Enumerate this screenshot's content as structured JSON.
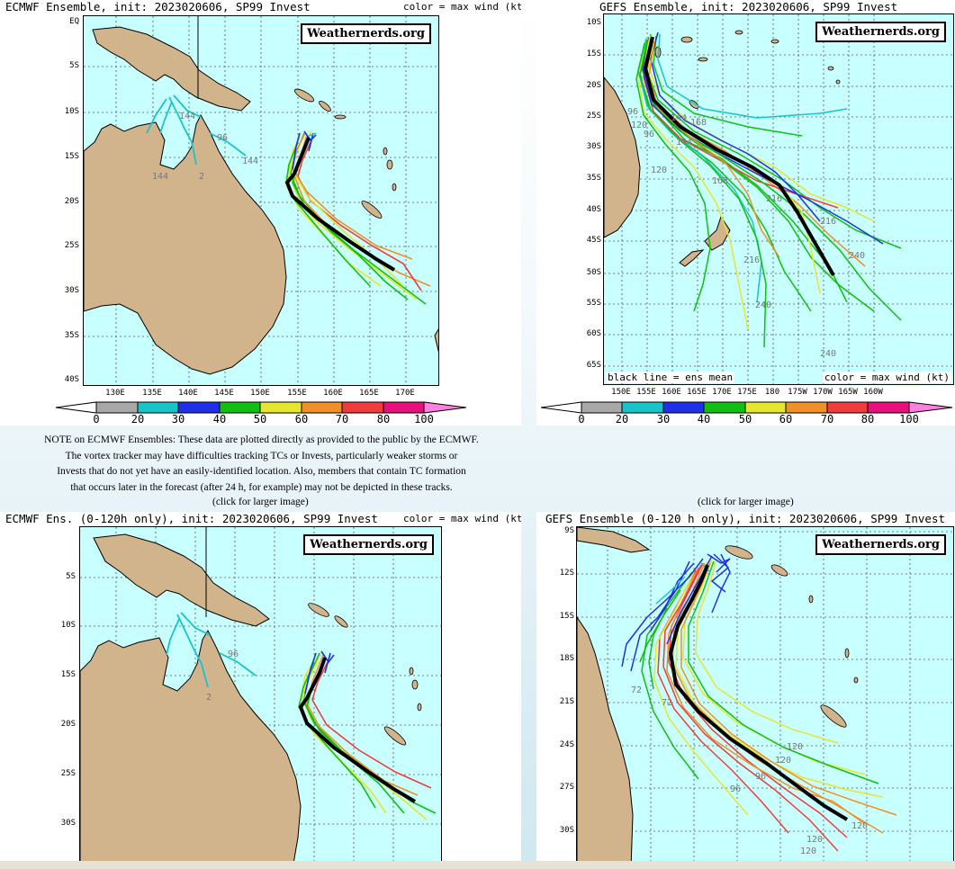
{
  "panels": {
    "ecmwf_full": {
      "title": "ECMWF Ensemble, init: 2023020606, SP99 Invest",
      "color_label": "color = max wind (kt)",
      "logo": "Weathernerds.org",
      "lat_labels": [
        "EQ",
        "5S",
        "10S",
        "15S",
        "20S",
        "25S",
        "30S",
        "35S",
        "40S"
      ],
      "lon_labels": [
        "130E",
        "135E",
        "140E",
        "145E",
        "150E",
        "155E",
        "160E",
        "165E",
        "170E"
      ],
      "time_labels": [
        "144",
        "96",
        "2",
        "144",
        "144"
      ]
    },
    "gefs_full": {
      "title": "GEFS Ensemble, init: 2023020606, SP99 Invest",
      "logo": "Weathernerds.org",
      "bottom_left": "black line = ens mean",
      "bottom_right": "color = max wind (kt)",
      "lat_labels": [
        "10S",
        "15S",
        "20S",
        "25S",
        "30S",
        "35S",
        "40S",
        "45S",
        "50S",
        "55S",
        "60S",
        "65S"
      ],
      "lon_labels": [
        "150E",
        "155E",
        "160E",
        "165E",
        "170E",
        "175E",
        "180",
        "175W",
        "170W",
        "165W",
        "160W"
      ],
      "time_labels": [
        "96",
        "96",
        "120",
        "144",
        "168",
        "144",
        "120",
        "168",
        "216",
        "216",
        "240",
        "240",
        "240",
        "216"
      ]
    },
    "ecmwf_120": {
      "title": "ECMWF Ens. (0-120h only), init: 2023020606, SP99 Invest",
      "color_label": "color = max wind (kt)",
      "logo": "Weathernerds.org",
      "lat_labels": [
        "5S",
        "10S",
        "15S",
        "20S",
        "25S",
        "30S"
      ],
      "time_labels": [
        "96",
        "2"
      ]
    },
    "gefs_120": {
      "title": "GEFS Ensemble (0-120 h only), init: 2023020606, SP99 Invest",
      "logo": "Weathernerds.org",
      "lat_labels": [
        "9S",
        "12S",
        "15S",
        "18S",
        "21S",
        "24S",
        "27S",
        "30S"
      ],
      "time_labels": [
        "72",
        "72",
        "120",
        "120",
        "96",
        "96",
        "120",
        "120",
        "120"
      ]
    }
  },
  "colorbar": {
    "ticks": [
      "0",
      "20",
      "30",
      "40",
      "50",
      "60",
      "70",
      "80",
      "100"
    ],
    "colors": [
      "#a8a8a8",
      "#19c3c9",
      "#2030e6",
      "#10c010",
      "#e6e630",
      "#f09028",
      "#f03c3c",
      "#e8107c"
    ]
  },
  "note": {
    "lines": [
      "NOTE on ECMWF Ensembles: These data are plotted directly as provided to the public by the ECMWF.",
      "The vortex tracker may have difficulties tracking TCs or Invests, particularly weaker storms or",
      "Invests that do not yet have an easily-identified location. Also, members that contain TC formation",
      "that occurs later in the forecast (after 24 h, for example) may not be depicted in these tracks."
    ]
  },
  "click_label": "(click for larger image)"
}
